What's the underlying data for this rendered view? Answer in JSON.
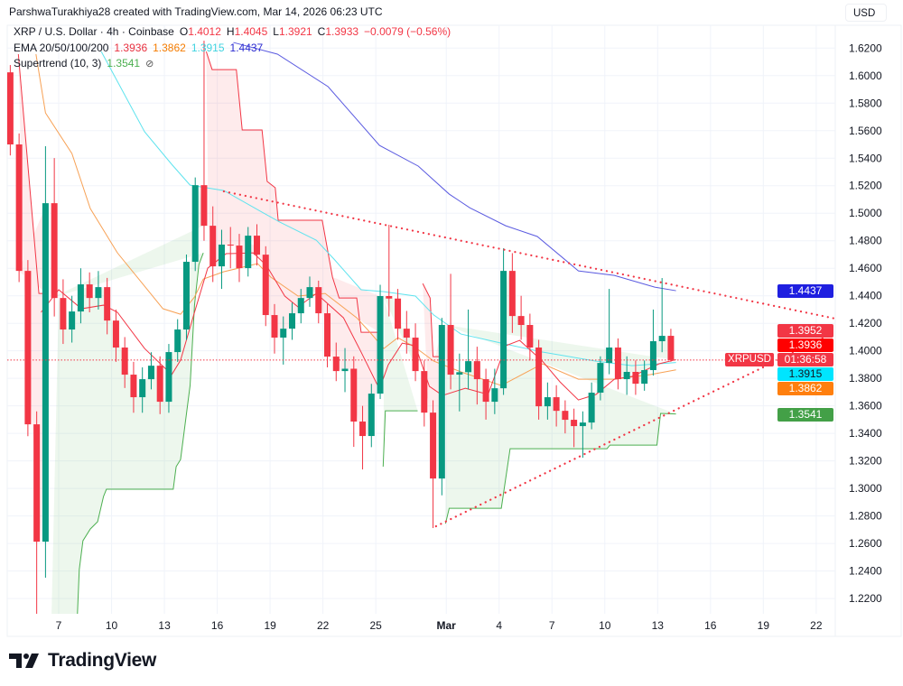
{
  "header": {
    "attribution": "ParshwaTurakhiya28 created with TradingView.com, Mar 14, 2026 06:23 UTC"
  },
  "legend": {
    "symbol": "XRP / U.S. Dollar · 4h · Coinbase",
    "ohlc": [
      {
        "key": "O",
        "value": "1.4012"
      },
      {
        "key": "H",
        "value": "1.4045"
      },
      {
        "key": "L",
        "value": "1.3921"
      },
      {
        "key": "C",
        "value": "1.3933"
      }
    ],
    "change": "−0.0079 (−0.56%)",
    "ema": {
      "label": "EMA 20/50/100/200",
      "values": [
        "1.3936",
        "1.3862",
        "1.3915",
        "1.4437"
      ]
    },
    "supertrend": {
      "label": "Supertrend (10, 3)",
      "value": "1.3541",
      "icon": "hidden-eye-icon"
    }
  },
  "axis": {
    "currency_button": "USD"
  },
  "price_labels": [
    {
      "value": "1.4437",
      "bg": "#1f1fe0",
      "fg": "#ffffff"
    },
    {
      "value": "1.3952",
      "bg": "#f23645",
      "fg": "#ffffff"
    },
    {
      "value": "1.3936",
      "bg": "#ff0000",
      "fg": "#ffffff"
    },
    {
      "value": "01:36:58",
      "bg": "#f23645",
      "fg": "#ffffff"
    },
    {
      "value": "1.3915",
      "bg": "#00e5ff",
      "fg": "#131722"
    },
    {
      "value": "1.3862",
      "bg": "#ff7f0e",
      "fg": "#ffffff"
    },
    {
      "value": "1.3541",
      "bg": "#43a047",
      "fg": "#ffffff"
    }
  ],
  "last_price_tag": {
    "symbol": "XRPUSD"
  },
  "brand": {
    "logo_text": "TradingView"
  },
  "colors": {
    "up": "#089981",
    "down": "#f23645",
    "ema20": "#f23645",
    "ema50": "#f7a155",
    "ema100": "#5fe3ee",
    "ema200": "#5a5ae0",
    "st_up": "#4caf50",
    "st_down": "#f23645",
    "trendline": "#f23645",
    "grid": "#f0f3fa"
  },
  "chart_data": {
    "type": "candlestick",
    "symbol": "XRPUSD",
    "interval_of_points": "12h",
    "start": "2026-02-04T00:00",
    "xlim": [
      "2026-02-04T00:00",
      "2026-03-23T02:00"
    ],
    "ylim": [
      1.2089,
      1.6366
    ],
    "grid": true,
    "x_ticks": [
      {
        "date": "2026-02-07",
        "label": "7"
      },
      {
        "date": "2026-02-10",
        "label": "10"
      },
      {
        "date": "2026-02-13",
        "label": "13"
      },
      {
        "date": "2026-02-16",
        "label": "16"
      },
      {
        "date": "2026-02-19",
        "label": "19"
      },
      {
        "date": "2026-02-22",
        "label": "22"
      },
      {
        "date": "2026-02-25",
        "label": "25"
      },
      {
        "date": "2026-03-01",
        "label": "Mar"
      },
      {
        "date": "2026-03-04",
        "label": "4"
      },
      {
        "date": "2026-03-07",
        "label": "7"
      },
      {
        "date": "2026-03-10",
        "label": "10"
      },
      {
        "date": "2026-03-13",
        "label": "13"
      },
      {
        "date": "2026-03-16",
        "label": "16"
      },
      {
        "date": "2026-03-19",
        "label": "19"
      },
      {
        "date": "2026-03-22",
        "label": "22"
      }
    ],
    "y_ticks": [
      "1.2200",
      "1.2400",
      "1.2600",
      "1.2800",
      "1.3000",
      "1.3200",
      "1.3400",
      "1.3600",
      "1.3800",
      "1.4000",
      "1.4200",
      "1.4400",
      "1.4600",
      "1.4800",
      "1.5000",
      "1.5200",
      "1.5400",
      "1.5600",
      "1.5800",
      "1.6000",
      "1.6200"
    ],
    "ohlc": [
      [
        1.6024,
        1.6077,
        1.542,
        1.55
      ],
      [
        1.55,
        1.558,
        1.45,
        1.4581
      ],
      [
        1.4581,
        1.466,
        1.338,
        1.3466
      ],
      [
        1.3466,
        1.356,
        1.2089,
        1.2613
      ],
      [
        1.2613,
        1.5487,
        1.2351,
        1.5073
      ],
      [
        1.5073,
        1.5401,
        1.425,
        1.4384
      ],
      [
        1.4384,
        1.452,
        1.405,
        1.4155
      ],
      [
        1.4155,
        1.44,
        1.406,
        1.4286
      ],
      [
        1.4286,
        1.46,
        1.42,
        1.4483
      ],
      [
        1.4483,
        1.457,
        1.428,
        1.4384
      ],
      [
        1.4384,
        1.458,
        1.43,
        1.4463
      ],
      [
        1.4463,
        1.453,
        1.412,
        1.422
      ],
      [
        1.422,
        1.43,
        1.392,
        1.4024
      ],
      [
        1.4024,
        1.41,
        1.373,
        1.3827
      ],
      [
        1.3827,
        1.392,
        1.355,
        1.3663
      ],
      [
        1.3663,
        1.388,
        1.355,
        1.3794
      ],
      [
        1.3794,
        1.399,
        1.372,
        1.3892
      ],
      [
        1.3892,
        1.396,
        1.354,
        1.363
      ],
      [
        1.363,
        1.405,
        1.355,
        1.3991
      ],
      [
        1.3991,
        1.423,
        1.392,
        1.4155
      ],
      [
        1.4155,
        1.47,
        1.408,
        1.4647
      ],
      [
        1.4647,
        1.526,
        1.458,
        1.5204
      ],
      [
        1.5204,
        1.6254,
        1.48,
        1.4909
      ],
      [
        1.4909,
        1.505,
        1.45,
        1.4614
      ],
      [
        1.4614,
        1.488,
        1.445,
        1.4772
      ],
      [
        1.4772,
        1.49,
        1.46,
        1.4765
      ],
      [
        1.4765,
        1.485,
        1.45,
        1.4601
      ],
      [
        1.4601,
        1.49,
        1.454,
        1.4837
      ],
      [
        1.4837,
        1.492,
        1.462,
        1.4699
      ],
      [
        1.4699,
        1.476,
        1.418,
        1.426
      ],
      [
        1.426,
        1.434,
        1.398,
        1.4096
      ],
      [
        1.4096,
        1.425,
        1.39,
        1.4161
      ],
      [
        1.4161,
        1.435,
        1.408,
        1.4273
      ],
      [
        1.4273,
        1.445,
        1.42,
        1.4384
      ],
      [
        1.4384,
        1.454,
        1.432,
        1.4463
      ],
      [
        1.4463,
        1.451,
        1.42,
        1.4273
      ],
      [
        1.4273,
        1.434,
        1.388,
        1.3958
      ],
      [
        1.3958,
        1.406,
        1.378,
        1.3853
      ],
      [
        1.3853,
        1.402,
        1.37,
        1.387
      ],
      [
        1.387,
        1.396,
        1.3302,
        1.3486
      ],
      [
        1.3486,
        1.36,
        1.3138,
        1.3381
      ],
      [
        1.3381,
        1.376,
        1.33,
        1.3689
      ],
      [
        1.3689,
        1.448,
        1.365,
        1.4398
      ],
      [
        1.4398,
        1.4916,
        1.425,
        1.438
      ],
      [
        1.438,
        1.445,
        1.408,
        1.4161
      ],
      [
        1.4161,
        1.429,
        1.398,
        1.4096
      ],
      [
        1.4096,
        1.42,
        1.378,
        1.3853
      ],
      [
        1.3853,
        1.393,
        1.345,
        1.3551
      ],
      [
        1.3551,
        1.364,
        1.2712,
        1.3072
      ],
      [
        1.3072,
        1.424,
        1.295,
        1.4188
      ],
      [
        1.4188,
        1.456,
        1.372,
        1.3827
      ],
      [
        1.3827,
        1.398,
        1.356,
        1.3845
      ],
      [
        1.3845,
        1.43,
        1.372,
        1.3925
      ],
      [
        1.3925,
        1.403,
        1.361,
        1.3794
      ],
      [
        1.3794,
        1.387,
        1.35,
        1.363
      ],
      [
        1.363,
        1.387,
        1.354,
        1.3728
      ],
      [
        1.3728,
        1.4745,
        1.368,
        1.4581
      ],
      [
        1.4581,
        1.471,
        1.413,
        1.4253
      ],
      [
        1.4253,
        1.44,
        1.408,
        1.4188
      ],
      [
        1.4188,
        1.427,
        1.393,
        1.4024
      ],
      [
        1.4024,
        1.408,
        1.35,
        1.3597
      ],
      [
        1.3597,
        1.377,
        1.35,
        1.3663
      ],
      [
        1.3663,
        1.375,
        1.345,
        1.3564
      ],
      [
        1.3564,
        1.364,
        1.34,
        1.3499
      ],
      [
        1.3499,
        1.358,
        1.33,
        1.3453
      ],
      [
        1.3453,
        1.356,
        1.3223,
        1.3479
      ],
      [
        1.3479,
        1.377,
        1.343,
        1.3696
      ],
      [
        1.3696,
        1.396,
        1.364,
        1.3912
      ],
      [
        1.3912,
        1.445,
        1.383,
        1.4024
      ],
      [
        1.4024,
        1.409,
        1.372,
        1.3794
      ],
      [
        1.3794,
        1.396,
        1.368,
        1.3847
      ],
      [
        1.3847,
        1.393,
        1.368,
        1.3761
      ],
      [
        1.3761,
        1.393,
        1.371,
        1.386
      ],
      [
        1.386,
        1.43,
        1.382,
        1.407
      ],
      [
        1.407,
        1.4529,
        1.399,
        1.4109
      ],
      [
        1.4109,
        1.416,
        1.3921,
        1.3933
      ]
    ],
    "last_price": 1.3933,
    "ema20": [
      [
        "2026-02-06T00:00",
        1.428
      ],
      [
        "2026-02-07T00:00",
        1.4444
      ],
      [
        "2026-02-08T07:00",
        1.4306
      ],
      [
        "2026-02-09T13:00",
        1.4332
      ],
      [
        "2026-02-10T08:00",
        1.428
      ],
      [
        "2026-02-11T21:00",
        1.4017
      ],
      [
        "2026-02-13T10:00",
        1.3827
      ],
      [
        "2026-02-13T22:00",
        1.3932
      ],
      [
        "2026-02-14T17:00",
        1.428
      ],
      [
        "2026-02-15T11:00",
        1.4601
      ],
      [
        "2026-02-16T12:00",
        1.4706
      ],
      [
        "2026-02-18T01:00",
        1.4712
      ],
      [
        "2026-02-18T19:00",
        1.4621
      ],
      [
        "2026-02-19T20:00",
        1.4398
      ],
      [
        "2026-02-20T14:00",
        1.4319
      ],
      [
        "2026-02-21T15:00",
        1.4417
      ],
      [
        "2026-02-23T04:00",
        1.424
      ],
      [
        "2026-02-24T04:00",
        1.3991
      ],
      [
        "2026-02-25T05:00",
        1.3722
      ],
      [
        "2026-02-25T17:00",
        1.3899
      ],
      [
        "2026-02-26T12:00",
        1.4056
      ],
      [
        "2026-02-27T06:00",
        1.4037
      ],
      [
        "2026-02-28T01:00",
        1.3742
      ],
      [
        "2026-02-28T19:00",
        1.3676
      ],
      [
        "2026-03-02T02:00",
        1.3728
      ],
      [
        "2026-03-03T09:00",
        1.3683
      ],
      [
        "2026-03-04T09:00",
        1.4037
      ],
      [
        "2026-03-05T04:00",
        1.4076
      ],
      [
        "2026-03-06T11:00",
        1.3925
      ],
      [
        "2026-03-07T11:00",
        1.3774
      ],
      [
        "2026-03-08T12:00",
        1.3643
      ],
      [
        "2026-03-09T12:00",
        1.3683
      ],
      [
        "2026-03-10T13:00",
        1.3794
      ],
      [
        "2026-03-11T13:00",
        1.3814
      ],
      [
        "2026-03-13T02:00",
        1.3906
      ],
      [
        "2026-03-14T01:00",
        1.3936
      ]
    ],
    "ema50": [
      [
        "2026-02-05T17:00",
        1.6156
      ],
      [
        "2026-02-06T06:00",
        1.5729
      ],
      [
        "2026-02-07T18:00",
        1.5434
      ],
      [
        "2026-02-08T19:00",
        1.5034
      ],
      [
        "2026-02-10T08:00",
        1.4712
      ],
      [
        "2026-02-11T21:00",
        1.447
      ],
      [
        "2026-02-12T22:00",
        1.4306
      ],
      [
        "2026-02-13T22:00",
        1.4266
      ],
      [
        "2026-02-14T17:00",
        1.4391
      ],
      [
        "2026-02-15T05:00",
        1.4522
      ],
      [
        "2026-02-16T09:00",
        1.4575
      ],
      [
        "2026-02-18T07:00",
        1.4634
      ],
      [
        "2026-02-19T01:00",
        1.4535
      ],
      [
        "2026-02-20T14:00",
        1.4398
      ],
      [
        "2026-02-22T03:00",
        1.4417
      ],
      [
        "2026-02-23T22:00",
        1.424
      ],
      [
        "2026-02-24T17:00",
        1.4129
      ],
      [
        "2026-02-25T11:00",
        1.4017
      ],
      [
        "2026-02-26T06:00",
        1.4096
      ],
      [
        "2026-02-27T06:00",
        1.4024
      ],
      [
        "2026-02-28T07:00",
        1.3925
      ],
      [
        "2026-03-01T20:00",
        1.3847
      ],
      [
        "2026-03-04T03:00",
        1.3748
      ],
      [
        "2026-03-06T11:00",
        1.3906
      ],
      [
        "2026-03-08T12:00",
        1.3794
      ],
      [
        "2026-03-10T13:00",
        1.3794
      ],
      [
        "2026-03-12T14:00",
        1.3827
      ],
      [
        "2026-03-14T01:00",
        1.3862
      ]
    ],
    "ema100": [
      [
        "2026-02-09T10:00",
        1.6175
      ],
      [
        "2026-02-11T21:00",
        1.5592
      ],
      [
        "2026-02-13T10:00",
        1.5355
      ],
      [
        "2026-02-14T11:00",
        1.5204
      ],
      [
        "2026-02-16T09:00",
        1.5165
      ],
      [
        "2026-02-18T13:00",
        1.5008
      ],
      [
        "2026-02-19T13:00",
        1.4936
      ],
      [
        "2026-02-21T15:00",
        1.4804
      ],
      [
        "2026-02-22T15:00",
        1.4667
      ],
      [
        "2026-02-24T04:00",
        1.4444
      ],
      [
        "2026-02-25T11:00",
        1.443
      ],
      [
        "2026-02-27T06:00",
        1.4398
      ],
      [
        "2026-02-28T07:00",
        1.426
      ],
      [
        "2026-03-01T20:00",
        1.4122
      ],
      [
        "2026-03-04T03:00",
        1.4056
      ],
      [
        "2026-03-06T11:00",
        1.3991
      ],
      [
        "2026-03-09T12:00",
        1.3925
      ],
      [
        "2026-03-11T13:00",
        1.3892
      ],
      [
        "2026-03-14T01:00",
        1.3915
      ]
    ],
    "ema200": [
      [
        "2026-02-16T22:00",
        1.6241
      ],
      [
        "2026-02-19T10:00",
        1.6156
      ],
      [
        "2026-02-22T07:00",
        1.592
      ],
      [
        "2026-02-25T05:00",
        1.5493
      ],
      [
        "2026-02-27T10:00",
        1.5342
      ],
      [
        "2026-03-01T04:00",
        1.5139
      ],
      [
        "2026-03-02T08:00",
        1.504
      ],
      [
        "2026-03-04T09:00",
        1.4909
      ],
      [
        "2026-03-06T04:00",
        1.4831
      ],
      [
        "2026-03-08T12:00",
        1.4581
      ],
      [
        "2026-03-10T13:00",
        1.4548
      ],
      [
        "2026-03-12T20:00",
        1.4463
      ],
      [
        "2026-03-14T01:00",
        1.4437
      ]
    ],
    "supertrend": [
      {
        "trend": "down",
        "points": [
          [
            "2026-02-04T17:00",
            1.6156
          ],
          [
            "2026-02-05T21:00",
            1.4417
          ],
          [
            "2026-02-06T08:00",
            1.4417
          ]
        ]
      },
      {
        "trend": "up",
        "points": [
          [
            "2026-02-06T14:00",
            1.2023
          ],
          [
            "2026-02-08T01:00",
            1.2023
          ],
          [
            "2026-02-08T04:00",
            1.241
          ],
          [
            "2026-02-08T09:00",
            1.262
          ],
          [
            "2026-02-08T19:00",
            1.2705
          ],
          [
            "2026-02-09T05:00",
            1.2758
          ],
          [
            "2026-02-09T13:00",
            1.2941
          ],
          [
            "2026-02-09T17:00",
            1.2994
          ],
          [
            "2026-02-13T12:00",
            1.2994
          ],
          [
            "2026-02-13T16:00",
            1.3158
          ],
          [
            "2026-02-13T22:00",
            1.321
          ],
          [
            "2026-02-14T11:00",
            1.3748
          ],
          [
            "2026-02-14T17:00",
            1.4332
          ],
          [
            "2026-02-14T23:00",
            1.4627
          ],
          [
            "2026-02-15T05:00",
            1.4712
          ]
        ]
      },
      {
        "trend": "down",
        "points": [
          [
            "2026-02-15T09:00",
            1.6175
          ],
          [
            "2026-02-15T17:00",
            1.6044
          ],
          [
            "2026-02-17T02:00",
            1.6044
          ],
          [
            "2026-02-17T10:00",
            1.5605
          ],
          [
            "2026-02-18T13:00",
            1.5605
          ],
          [
            "2026-02-18T20:00",
            1.5231
          ],
          [
            "2026-02-19T07:00",
            1.5185
          ],
          [
            "2026-02-19T11:00",
            1.4949
          ],
          [
            "2026-02-21T23:00",
            1.4949
          ],
          [
            "2026-02-22T13:00",
            1.4535
          ],
          [
            "2026-02-22T22:00",
            1.4384
          ],
          [
            "2026-02-23T22:00",
            1.4384
          ],
          [
            "2026-02-24T04:00",
            1.4135
          ],
          [
            "2026-02-25T05:00",
            1.4135
          ]
        ]
      },
      {
        "trend": "up",
        "points": [
          [
            "2026-02-25T10:00",
            1.3158
          ],
          [
            "2026-02-25T13:00",
            1.3564
          ],
          [
            "2026-02-27T09:00",
            1.3564
          ]
        ]
      },
      {
        "trend": "down",
        "points": [
          [
            "2026-02-27T16:00",
            1.4489
          ],
          [
            "2026-02-28T02:00",
            1.4384
          ],
          [
            "2026-02-28T06:00",
            1.3958
          ],
          [
            "2026-02-28T19:00",
            1.3958
          ]
        ]
      },
      {
        "trend": "up",
        "points": [
          [
            "2026-02-28T23:00",
            1.2744
          ],
          [
            "2026-03-01T04:00",
            1.2856
          ],
          [
            "2026-03-04T03:00",
            1.2856
          ],
          [
            "2026-03-04T15:00",
            1.3289
          ],
          [
            "2026-03-10T03:00",
            1.3289
          ],
          [
            "2026-03-10T07:00",
            1.3315
          ],
          [
            "2026-03-12T23:00",
            1.3315
          ],
          [
            "2026-03-13T04:00",
            1.3545
          ],
          [
            "2026-03-14T01:00",
            1.3541
          ]
        ]
      }
    ],
    "trendlines": [
      {
        "style": "dotted",
        "from": [
          "2026-02-16T09:00",
          1.5159
        ],
        "to": [
          "2026-03-23T02:00",
          1.4234
        ]
      },
      {
        "style": "dotted",
        "from": [
          "2026-02-28T10:00",
          1.2725
        ],
        "to": [
          "2026-03-23T02:00",
          1.4135
        ]
      }
    ]
  }
}
